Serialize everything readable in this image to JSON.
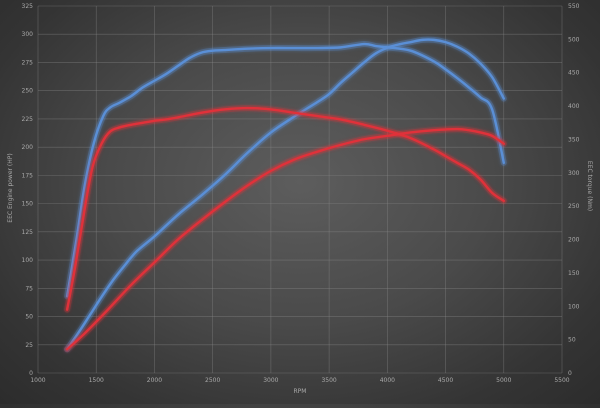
{
  "chart_data": {
    "type": "line",
    "title": "",
    "xlabel": "RPM",
    "ylabel_left": "EEC Engine power (HP)",
    "ylabel_right": "EEC torque (Nm)",
    "xlim": [
      1000,
      5500
    ],
    "ylim_left": [
      0,
      325
    ],
    "ylim_right": [
      0,
      550
    ],
    "x_ticks": [
      "1000",
      "1500",
      "2000",
      "2500",
      "3000",
      "3500",
      "4000",
      "4500",
      "5000",
      "5500"
    ],
    "y_ticks_left": [
      "0",
      "25",
      "50",
      "75",
      "100",
      "125",
      "150",
      "175",
      "200",
      "225",
      "250",
      "275",
      "300",
      "325"
    ],
    "y_ticks_right": [
      "0",
      "50",
      "100",
      "150",
      "200",
      "250",
      "300",
      "350",
      "400",
      "450",
      "500",
      "550"
    ],
    "grid": true,
    "colors": {
      "tuned": "#5a8fd6",
      "stock": "#e0313a"
    },
    "series": [
      {
        "color_key": "tuned",
        "axis": "right",
        "x": [
          1250,
          1330,
          1400,
          1480,
          1560,
          1620,
          1700,
          1800,
          1900,
          2000,
          2100,
          2200,
          2300,
          2400,
          2500,
          2600,
          2800,
          3000,
          3200,
          3400,
          3600,
          3800,
          3900,
          4000,
          4200,
          4400,
          4500,
          4600,
          4700,
          4800,
          4900,
          5000
        ],
        "values": [
          115,
          200,
          280,
          345,
          385,
          398,
          405,
          415,
          428,
          438,
          448,
          460,
          472,
          480,
          483,
          484,
          486,
          487,
          487,
          487,
          488,
          493,
          490,
          488,
          483,
          467,
          455,
          442,
          428,
          413,
          395,
          315
        ]
      },
      {
        "color_key": "tuned",
        "axis": "left",
        "x": [
          1250,
          1350,
          1450,
          1550,
          1650,
          1750,
          1850,
          2000,
          2200,
          2400,
          2600,
          2800,
          3000,
          3200,
          3400,
          3500,
          3600,
          3700,
          3800,
          3900,
          4000,
          4100,
          4200,
          4300,
          4400,
          4500,
          4600,
          4700,
          4800,
          4900,
          5000
        ],
        "values": [
          21,
          36,
          52,
          68,
          83,
          96,
          108,
          121,
          140,
          157,
          175,
          195,
          213,
          227,
          240,
          247,
          257,
          266,
          275,
          283,
          288,
          291,
          293,
          295,
          295,
          293,
          289,
          283,
          274,
          262,
          243
        ]
      },
      {
        "color_key": "stock",
        "axis": "right",
        "x": [
          1250,
          1320,
          1400,
          1470,
          1550,
          1620,
          1700,
          1800,
          1900,
          2000,
          2100,
          2200,
          2400,
          2600,
          2800,
          3000,
          3200,
          3400,
          3600,
          3800,
          4000,
          4200,
          4400,
          4500,
          4600,
          4700,
          4800,
          4900,
          5000
        ],
        "values": [
          95,
          160,
          245,
          310,
          345,
          362,
          368,
          372,
          375,
          378,
          380,
          383,
          390,
          395,
          397,
          395,
          390,
          385,
          380,
          372,
          363,
          352,
          335,
          325,
          315,
          305,
          290,
          270,
          258
        ]
      },
      {
        "color_key": "stock",
        "axis": "left",
        "x": [
          1250,
          1400,
          1600,
          1800,
          2000,
          2200,
          2400,
          2600,
          2800,
          3000,
          3200,
          3400,
          3600,
          3800,
          4000,
          4200,
          4400,
          4600,
          4700,
          4800,
          4900,
          5000
        ],
        "values": [
          21,
          35,
          56,
          78,
          98,
          118,
          135,
          151,
          166,
          179,
          189,
          196,
          202,
          207,
          210,
          213,
          215,
          216,
          215,
          213,
          210,
          203
        ]
      }
    ]
  }
}
